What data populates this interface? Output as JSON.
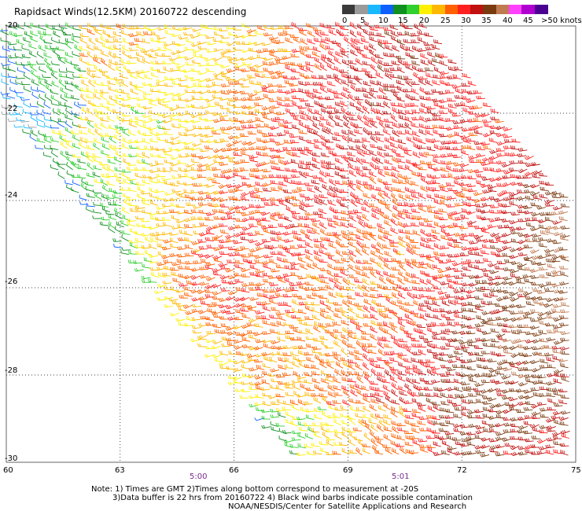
{
  "title": "Rapidsact Winds(12.5KM) 20160722 descending",
  "colorbar": {
    "colors": [
      "#3a3a3a",
      "#9a9a9a",
      "#18b8ff",
      "#1060ff",
      "#109020",
      "#30d030",
      "#fff000",
      "#ffb800",
      "#ff6000",
      "#ff2020",
      "#c01010",
      "#7a3a10",
      "#c07a50",
      "#ff40ff",
      "#b000d0",
      "#4a0090"
    ],
    "labels": [
      "0",
      "5",
      "10",
      "15",
      "20",
      "25",
      "30",
      "35",
      "40",
      "45",
      ">50 knots"
    ]
  },
  "map": {
    "lat_labels": [
      "-20",
      "-22",
      "-24",
      "-26",
      "-28",
      "-30"
    ],
    "lon_labels": [
      "60",
      "63",
      "66",
      "69",
      "72",
      "75"
    ],
    "time_labels": [
      "5:00",
      "5:01"
    ],
    "lon_range": [
      60,
      75
    ],
    "lat_range": [
      -20,
      -30
    ]
  },
  "notes": {
    "line1": "Note: 1) Times are GMT 2)Times along bottom correspond to measurement at -20S",
    "line2": "3)Data buffer is 22 hrs from 20160722 4) Black wind barbs indicate possible contamination",
    "line3": "NOAA/NESDIS/Center for Satellite Applications and Research"
  }
}
